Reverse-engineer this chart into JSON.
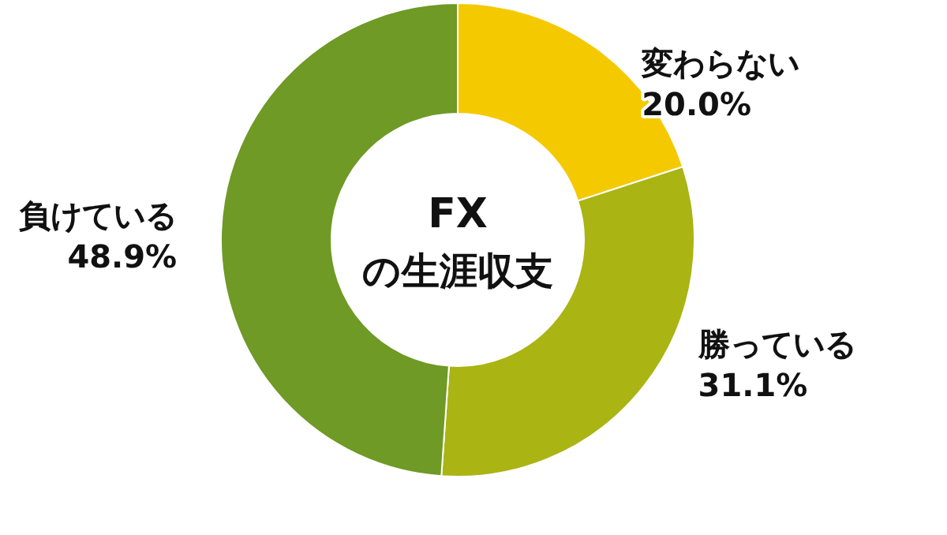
{
  "chart_data": {
    "type": "donut",
    "title": "FX",
    "subtitle": "の生涯収支",
    "categories": [
      "変わらない",
      "勝っている",
      "負けている"
    ],
    "values": [
      20.0,
      31.1,
      48.9
    ],
    "colors": [
      "#f5c900",
      "#aab413",
      "#6e9a25"
    ],
    "value_labels": [
      "20.0%",
      "31.1%",
      "48.9%"
    ],
    "legend": false
  }
}
